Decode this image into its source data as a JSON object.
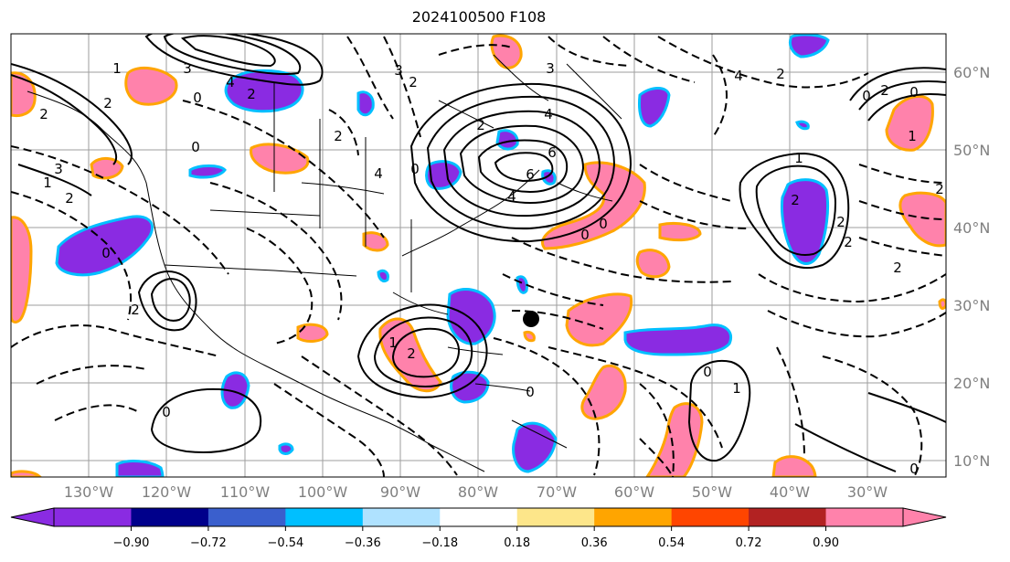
{
  "title": "2024100500 F108",
  "map": {
    "lon_labels": [
      "130°W",
      "120°W",
      "110°W",
      "100°W",
      "90°W",
      "80°W",
      "70°W",
      "60°W",
      "50°W",
      "40°W",
      "30°W"
    ],
    "lat_labels": [
      "60°N",
      "50°N",
      "40°N",
      "30°N",
      "20°N",
      "10°N"
    ],
    "marker": "storm-position-dot",
    "contour_labels": [
      "1",
      "3",
      "4",
      "2",
      "0",
      "2",
      "2",
      "3",
      "1",
      "2",
      "0",
      "2",
      "0",
      "2",
      "3",
      "4",
      "6",
      "1",
      "4",
      "6",
      "4",
      "2",
      "0",
      "2",
      "3",
      "4",
      "2",
      "0",
      "2",
      "0",
      "1",
      "1",
      "2",
      "2",
      "2",
      "2",
      "0",
      "2",
      "0",
      "0",
      "2",
      "0",
      "0",
      "1",
      "0"
    ]
  },
  "colorbar": {
    "ticks": [
      "−0.90",
      "−0.72",
      "−0.54",
      "−0.36",
      "−0.18",
      "0.18",
      "0.36",
      "0.54",
      "0.72",
      "0.90"
    ],
    "colors": [
      "#8a2be2",
      "#00008b",
      "#3a5fcd",
      "#00bfff",
      "#afe2ff",
      "#ffffff",
      "#fde68a",
      "#ffa500",
      "#ff4500",
      "#b22222",
      "#ff82ab"
    ],
    "extend_low_color": "#8a2be2",
    "extend_high_color": "#ff82ab"
  }
}
